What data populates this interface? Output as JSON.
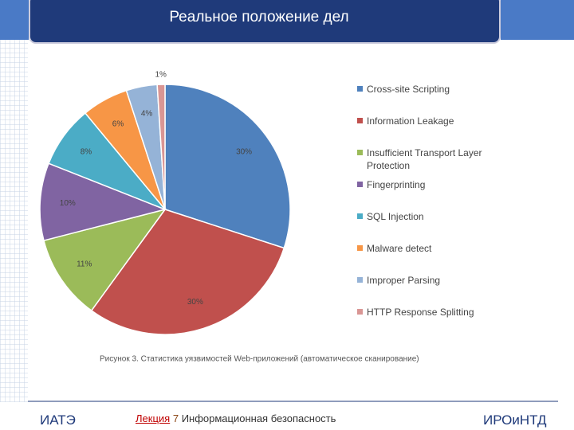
{
  "slide": {
    "title": "Реальное положение дел",
    "footer_left": "ИАТЭ",
    "footer_lecture": "Лекция",
    "footer_number": "7",
    "footer_course": "Информационная безопасность",
    "footer_right": "ИРОиНТД"
  },
  "chart_data": {
    "type": "pie",
    "caption": "Рисунок 3. Статистика уязвимостей Web-приложений (автоматическое сканирование)",
    "categories": [
      "Cross-site Scripting",
      "Information Leakage",
      "Insufficient Transport Layer Protection",
      "Fingerprinting",
      "SQL Injection",
      "Malware detect",
      "Improper Parsing",
      "HTTP Response Splitting"
    ],
    "values": [
      30,
      30,
      11,
      10,
      8,
      6,
      4,
      1
    ],
    "value_labels": [
      "30%",
      "30%",
      "11%",
      "10%",
      "8%",
      "6%",
      "4%",
      "1%"
    ],
    "colors": [
      "#4f81bd",
      "#c0504d",
      "#9bbb59",
      "#8064a2",
      "#4bacc6",
      "#f79646",
      "#95b3d7",
      "#d99694"
    ],
    "legend": "right"
  }
}
